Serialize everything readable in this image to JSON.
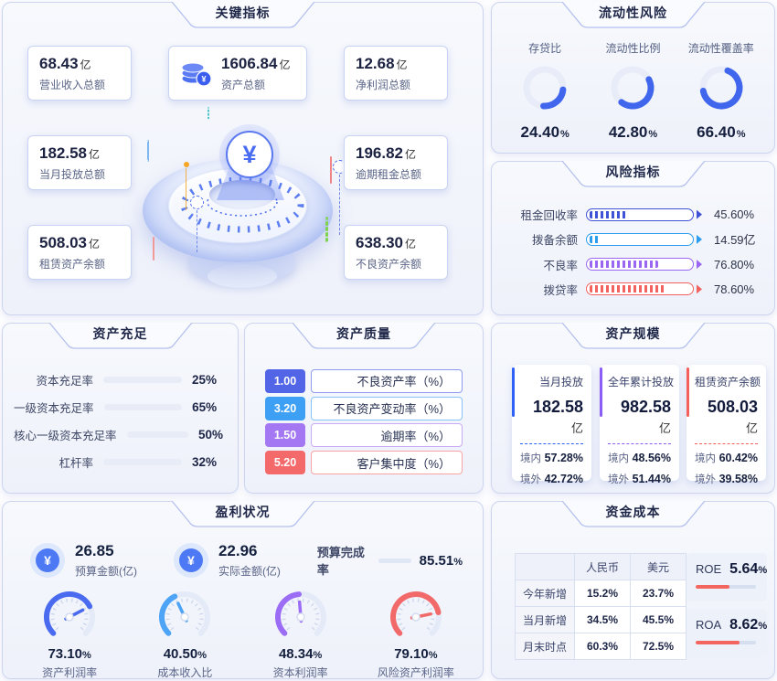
{
  "accent_color": "#3f66ec",
  "panels": {
    "key_metrics": {
      "title": "关键指标",
      "cards": [
        {
          "value": "68.43",
          "unit": "亿",
          "label": "营业收入总额"
        },
        {
          "value": "1606.84",
          "unit": "亿",
          "label": "资产总额"
        },
        {
          "value": "12.68",
          "unit": "亿",
          "label": "净利润总额"
        },
        {
          "value": "182.58",
          "unit": "亿",
          "label": "当月投放总额"
        },
        {
          "value": "196.82",
          "unit": "亿",
          "label": "逾期租金总额"
        },
        {
          "value": "508.03",
          "unit": "亿",
          "label": "租赁资产余额"
        },
        {
          "value": "638.30",
          "unit": "亿",
          "label": "不良资产余额"
        }
      ],
      "center_symbol": "¥"
    },
    "liquidity_risk": {
      "title": "流动性风险",
      "donuts": [
        {
          "label": "存贷比",
          "value": 24.4,
          "display": "24.40",
          "unit": "%"
        },
        {
          "label": "流动性比例",
          "value": 42.8,
          "display": "42.80",
          "unit": "%"
        },
        {
          "label": "流动性覆盖率",
          "value": 66.4,
          "display": "66.40",
          "unit": "%"
        }
      ]
    },
    "risk_indicators": {
      "title": "风险指标",
      "rows": [
        {
          "label": "租金回收率",
          "value": "45.60%",
          "fill": 36,
          "color": "#4052d8"
        },
        {
          "label": "拨备余额",
          "value": "14.59亿",
          "fill": 10,
          "color": "#2b9df0"
        },
        {
          "label": "不良率",
          "value": "76.80%",
          "fill": 68,
          "color": "#9b66f2"
        },
        {
          "label": "拨贷率",
          "value": "78.60%",
          "fill": 76,
          "color": "#f2635f"
        }
      ]
    },
    "capital_adequacy": {
      "title": "资产充足",
      "rows": [
        {
          "label": "资本充足率",
          "value": "25%",
          "fill": 25
        },
        {
          "label": "一级资本充足率",
          "value": "65%",
          "fill": 65
        },
        {
          "label": "核心一级资本充足率",
          "value": "50%",
          "fill": 50
        },
        {
          "label": "杠杆率",
          "value": "32%",
          "fill": 32
        }
      ]
    },
    "asset_quality": {
      "title": "资产质量",
      "rows": [
        {
          "value": "1.00",
          "label": "不良资产率（%）",
          "color": "#5165e6",
          "border": "#8d9af0"
        },
        {
          "value": "3.20",
          "label": "不良资产变动率（%）",
          "color": "#3da0f5",
          "border": "#86c3f8"
        },
        {
          "value": "1.50",
          "label": "逾期率（%）",
          "color": "#a478f2",
          "border": "#c8aaf7"
        },
        {
          "value": "5.20",
          "label": "客户集中度（%）",
          "color": "#f4696a",
          "border": "#f8a3a3"
        }
      ]
    },
    "asset_scale": {
      "title": "资产规模",
      "domestic_label": "境内",
      "overseas_label": "境外",
      "cards": [
        {
          "label": "当月投放",
          "value": "182.58",
          "unit": "亿",
          "domestic": "57.28%",
          "overseas": "42.72%",
          "color": "#2e62f6"
        },
        {
          "label": "全年累计投放",
          "value": "982.58",
          "unit": "亿",
          "domestic": "48.56%",
          "overseas": "51.44%",
          "color": "#8b5cf6"
        },
        {
          "label": "租赁资产余额",
          "value": "508.03",
          "unit": "亿",
          "domestic": "60.42%",
          "overseas": "39.58%",
          "color": "#f6605c"
        }
      ]
    },
    "profitability": {
      "title": "盈利状况",
      "stats": [
        {
          "value": "26.85",
          "label": "预算金额(亿)",
          "icon": "yen-icon"
        },
        {
          "value": "22.96",
          "label": "实际金额(亿)",
          "icon": "yen-icon"
        }
      ],
      "completion": {
        "label": "预算完成率",
        "display": "85.51",
        "unit": "%",
        "fill": 85.51
      },
      "gauges": [
        {
          "value": 73.1,
          "display": "73.10",
          "unit": "%",
          "label": "资产利润率",
          "color": "#4a6bef"
        },
        {
          "value": 40.5,
          "display": "40.50",
          "unit": "%",
          "label": "成本收入比",
          "color": "#4da3f5"
        },
        {
          "value": 48.34,
          "display": "48.34",
          "unit": "%",
          "label": "资本利润率",
          "color": "#9b6cf6"
        },
        {
          "value": 79.1,
          "display": "79.10",
          "unit": "%",
          "label": "风险资产利润率",
          "color": "#f2696a"
        }
      ]
    },
    "funding_cost": {
      "title": "资金成本",
      "table": {
        "headers": [
          "",
          "人民币",
          "美元"
        ],
        "rows": [
          {
            "label": "今年新增",
            "cny": "15.2%",
            "usd": "23.7%"
          },
          {
            "label": "当月新增",
            "cny": "34.5%",
            "usd": "45.5%"
          },
          {
            "label": "月末时点",
            "cny": "60.3%",
            "usd": "72.5%"
          }
        ]
      },
      "metrics": [
        {
          "label": "ROE",
          "display": "5.64",
          "unit": "%",
          "fill": 56
        },
        {
          "label": "ROA",
          "display": "8.62",
          "unit": "%",
          "fill": 73
        }
      ]
    }
  },
  "chart_data": [
    {
      "type": "table",
      "title": "关键指标",
      "categories": [
        "营业收入总额",
        "资产总额",
        "净利润总额",
        "当月投放总额",
        "逾期租金总额",
        "租赁资产余额",
        "不良资产余额"
      ],
      "values": [
        68.43,
        1606.84,
        12.68,
        182.58,
        196.82,
        508.03,
        638.3
      ],
      "unit": "亿"
    },
    {
      "type": "pie",
      "subtype": "donut-percent",
      "title": "流动性风险",
      "categories": [
        "存贷比",
        "流动性比例",
        "流动性覆盖率"
      ],
      "values": [
        24.4,
        42.8,
        66.4
      ],
      "unit": "%"
    },
    {
      "type": "bar",
      "orientation": "horizontal",
      "title": "风险指标",
      "categories": [
        "租金回收率",
        "拨备余额",
        "不良率",
        "拨贷率"
      ],
      "values": [
        "45.60%",
        "14.59亿",
        "76.80%",
        "78.60%"
      ]
    },
    {
      "type": "bar",
      "orientation": "horizontal",
      "title": "资产充足",
      "categories": [
        "资本充足率",
        "一级资本充足率",
        "核心一级资本充足率",
        "杠杆率"
      ],
      "values": [
        25,
        65,
        50,
        32
      ],
      "unit": "%",
      "xlim": [
        0,
        100
      ]
    },
    {
      "type": "bar",
      "orientation": "horizontal",
      "title": "资产质量",
      "categories": [
        "不良资产率",
        "不良资产变动率",
        "逾期率",
        "客户集中度"
      ],
      "values": [
        1.0,
        3.2,
        1.5,
        5.2
      ],
      "unit": "%"
    },
    {
      "type": "table",
      "title": "资产规模",
      "series": [
        {
          "name": "当月投放",
          "total": 182.58,
          "unit": "亿",
          "domestic": "57.28%",
          "overseas": "42.72%"
        },
        {
          "name": "全年累计投放",
          "total": 982.58,
          "unit": "亿",
          "domestic": "48.56%",
          "overseas": "51.44%"
        },
        {
          "name": "租赁资产余额",
          "total": 508.03,
          "unit": "亿",
          "domestic": "60.42%",
          "overseas": "39.58%"
        }
      ]
    },
    {
      "type": "gauge",
      "title": "盈利状况",
      "stats": {
        "预算金额(亿)": 26.85,
        "实际金额(亿)": 22.96,
        "预算完成率": "85.51%"
      },
      "categories": [
        "资产利润率",
        "成本收入比",
        "资本利润率",
        "风险资产利润率"
      ],
      "values": [
        73.1,
        40.5,
        48.34,
        79.1
      ],
      "unit": "%",
      "gauge_range": [
        0,
        100
      ]
    },
    {
      "type": "table",
      "title": "资金成本",
      "columns": [
        "人民币",
        "美元"
      ],
      "rows": [
        [
          "今年新增",
          "15.2%",
          "23.7%"
        ],
        [
          "当月新增",
          "34.5%",
          "45.5%"
        ],
        [
          "月末时点",
          "60.3%",
          "72.5%"
        ]
      ],
      "extra": {
        "ROE": "5.64%",
        "ROA": "8.62%"
      }
    }
  ]
}
